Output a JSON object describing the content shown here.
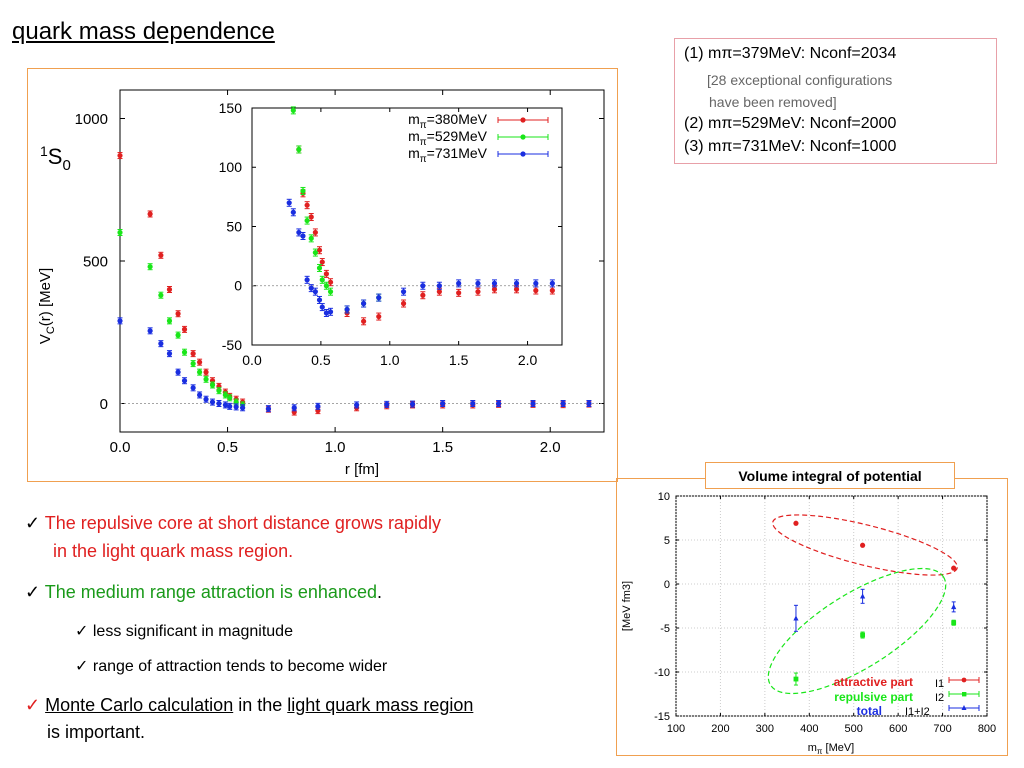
{
  "slide": {
    "title": "quark mass dependence",
    "state_label": "S",
    "state_sup": "1",
    "state_sub": "0"
  },
  "conf_box": {
    "line1": "(1) mπ=379MeV: Nconf=2034",
    "note1": "[28 exceptional configurations",
    "note2": "have  been removed]",
    "line2": "(2) mπ=529MeV: Nconf=2000",
    "line3": "(3) mπ=731MeV: Nconf=1000"
  },
  "bullets": {
    "check": "✓",
    "b1_line1": "The repulsive core at short distance grows rapidly",
    "b1_line2": "in the light quark mass region.",
    "b2_text": "The medium range attraction is enhanced",
    "b2_period": ".",
    "b3": "less significant in magnitude",
    "b4": "range of attraction tends to become wider",
    "b5_part1": "Monte Carlo calculation",
    "b5_part2": " in the ",
    "b5_part3": "light quark mass region",
    "b5_line2": "is important."
  },
  "volume_box": {
    "title": "Volume integral of potential"
  },
  "colors": {
    "red": "#e02020",
    "green": "#19e619",
    "blue": "#1a2ee0",
    "frame": "#f0a050"
  },
  "chart_data": [
    {
      "type": "scatter",
      "xlabel": "r [fm]",
      "ylabel": "V_C(r) [MeV]",
      "ylabel_main": "V",
      "ylabel_sub": "C",
      "ylabel_rest": "(r) [MeV]",
      "xlim": [
        0,
        2.25
      ],
      "ylim": [
        -100,
        1100
      ],
      "xticks": [
        "0.0",
        "0.5",
        "1.0",
        "1.5",
        "2.0"
      ],
      "xtick_values": [
        0,
        0.5,
        1.0,
        1.5,
        2.0
      ],
      "yticks": [
        "0",
        "500",
        "1000"
      ],
      "ytick_values": [
        0,
        500,
        1000
      ],
      "series": [
        {
          "name": "mπ=380MeV",
          "color": "#e02020",
          "x": [
            0.0,
            0.14,
            0.19,
            0.23,
            0.27,
            0.3,
            0.34,
            0.37,
            0.4,
            0.43,
            0.46,
            0.49,
            0.51,
            0.54,
            0.57,
            0.69,
            0.81,
            0.92,
            1.1,
            1.24,
            1.36,
            1.5,
            1.64,
            1.76,
            1.92,
            2.06,
            2.18
          ],
          "y": [
            870,
            665,
            520,
            400,
            315,
            260,
            175,
            145,
            110,
            80,
            60,
            40,
            25,
            15,
            5,
            -20,
            -30,
            -25,
            -15,
            -8,
            -5,
            -5,
            -5,
            -3,
            -3,
            -4,
            -2
          ]
        },
        {
          "name": "mπ=529MeV",
          "color": "#19e619",
          "x": [
            0.0,
            0.14,
            0.19,
            0.23,
            0.27,
            0.3,
            0.34,
            0.37,
            0.4,
            0.43,
            0.46,
            0.49,
            0.51,
            0.54,
            0.57
          ],
          "y": [
            600,
            480,
            380,
            290,
            240,
            180,
            140,
            110,
            85,
            65,
            45,
            30,
            20,
            5,
            -5
          ]
        },
        {
          "name": "mπ=731MeV",
          "color": "#1a2ee0",
          "x": [
            0.0,
            0.14,
            0.19,
            0.23,
            0.27,
            0.3,
            0.34,
            0.37,
            0.4,
            0.43,
            0.46,
            0.49,
            0.51,
            0.54,
            0.57,
            0.69,
            0.81,
            0.92,
            1.1,
            1.24,
            1.36,
            1.5,
            1.64,
            1.76,
            1.92,
            2.06,
            2.18
          ],
          "y": [
            290,
            255,
            210,
            175,
            110,
            80,
            55,
            30,
            15,
            5,
            0,
            -5,
            -10,
            -12,
            -15,
            -18,
            -15,
            -10,
            -5,
            -3,
            -2,
            0,
            0,
            0,
            0,
            0,
            0
          ]
        }
      ]
    },
    {
      "type": "scatter",
      "xlim": [
        0,
        2.25
      ],
      "ylim": [
        -50,
        150
      ],
      "xticks": [
        "0.0",
        "0.5",
        "1.0",
        "1.5",
        "2.0"
      ],
      "xtick_values": [
        0,
        0.5,
        1.0,
        1.5,
        2.0
      ],
      "yticks": [
        "-50",
        "0",
        "50",
        "100",
        "150"
      ],
      "ytick_values": [
        -50,
        0,
        50,
        100,
        150
      ],
      "series": [
        {
          "name": "mπ=380MeV",
          "name_main": "m",
          "name_sub": "π",
          "name_rest": "=380MeV",
          "color": "#e02020",
          "x": [
            0.34,
            0.37,
            0.4,
            0.43,
            0.46,
            0.49,
            0.51,
            0.54,
            0.57,
            0.69,
            0.81,
            0.92,
            1.1,
            1.24,
            1.36,
            1.5,
            1.64,
            1.76,
            1.92,
            2.06,
            2.18
          ],
          "y": [
            115,
            78,
            68,
            58,
            45,
            30,
            20,
            10,
            3,
            -23,
            -30,
            -26,
            -15,
            -8,
            -5,
            -6,
            -5,
            -3,
            -3,
            -4,
            -4
          ]
        },
        {
          "name": "mπ=529MeV",
          "name_main": "m",
          "name_sub": "π",
          "name_rest": "=529MeV",
          "color": "#19e619",
          "x": [
            0.3,
            0.34,
            0.37,
            0.4,
            0.43,
            0.46,
            0.49,
            0.51,
            0.54,
            0.57,
            0.69,
            0.81,
            0.92
          ],
          "y": [
            148,
            115,
            80,
            55,
            40,
            28,
            15,
            5,
            0,
            -5,
            -20,
            -15,
            -10
          ]
        },
        {
          "name": "mπ=731MeV",
          "name_main": "m",
          "name_sub": "π",
          "name_rest": "=731MeV",
          "color": "#1a2ee0",
          "x": [
            0.27,
            0.3,
            0.34,
            0.37,
            0.4,
            0.43,
            0.46,
            0.49,
            0.51,
            0.54,
            0.57,
            0.69,
            0.81,
            0.92,
            1.1,
            1.24,
            1.36,
            1.5,
            1.64,
            1.76,
            1.92,
            2.06,
            2.18
          ],
          "y": [
            70,
            62,
            45,
            42,
            5,
            -2,
            -5,
            -12,
            -18,
            -23,
            -22,
            -20,
            -15,
            -10,
            -5,
            0,
            0,
            2,
            2,
            2,
            2,
            2,
            2
          ]
        }
      ]
    },
    {
      "type": "scatter",
      "title": "Volume integral of potential",
      "xlabel": "m_π [MeV]",
      "xlabel_main": "m",
      "xlabel_sub": "π",
      "xlabel_rest": " [MeV]",
      "ylabel": "[MeV fm3]",
      "xlim": [
        100,
        800
      ],
      "ylim": [
        -15,
        10
      ],
      "xticks": [
        "100",
        "200",
        "300",
        "400",
        "500",
        "600",
        "700",
        "800"
      ],
      "xtick_values": [
        100,
        200,
        300,
        400,
        500,
        600,
        700,
        800
      ],
      "yticks": [
        "-15",
        "-10",
        "-5",
        "0",
        "5",
        "10"
      ],
      "ytick_values": [
        -15,
        -10,
        -5,
        0,
        5,
        10
      ],
      "series": [
        {
          "name": "attractive part",
          "symbol": "I1",
          "color": "#e02020",
          "x": [
            370,
            520,
            725
          ],
          "y": [
            6.9,
            4.4,
            1.8
          ]
        },
        {
          "name": "repulsive part",
          "symbol": "I2",
          "color": "#19e619",
          "x": [
            370,
            520,
            725
          ],
          "y": [
            -10.8,
            -5.8,
            -4.4
          ]
        },
        {
          "name": "total",
          "symbol": "I1+I2",
          "color": "#1a2ee0",
          "x": [
            370,
            520,
            725
          ],
          "y": [
            -3.9,
            -1.4,
            -2.6
          ]
        }
      ]
    }
  ]
}
